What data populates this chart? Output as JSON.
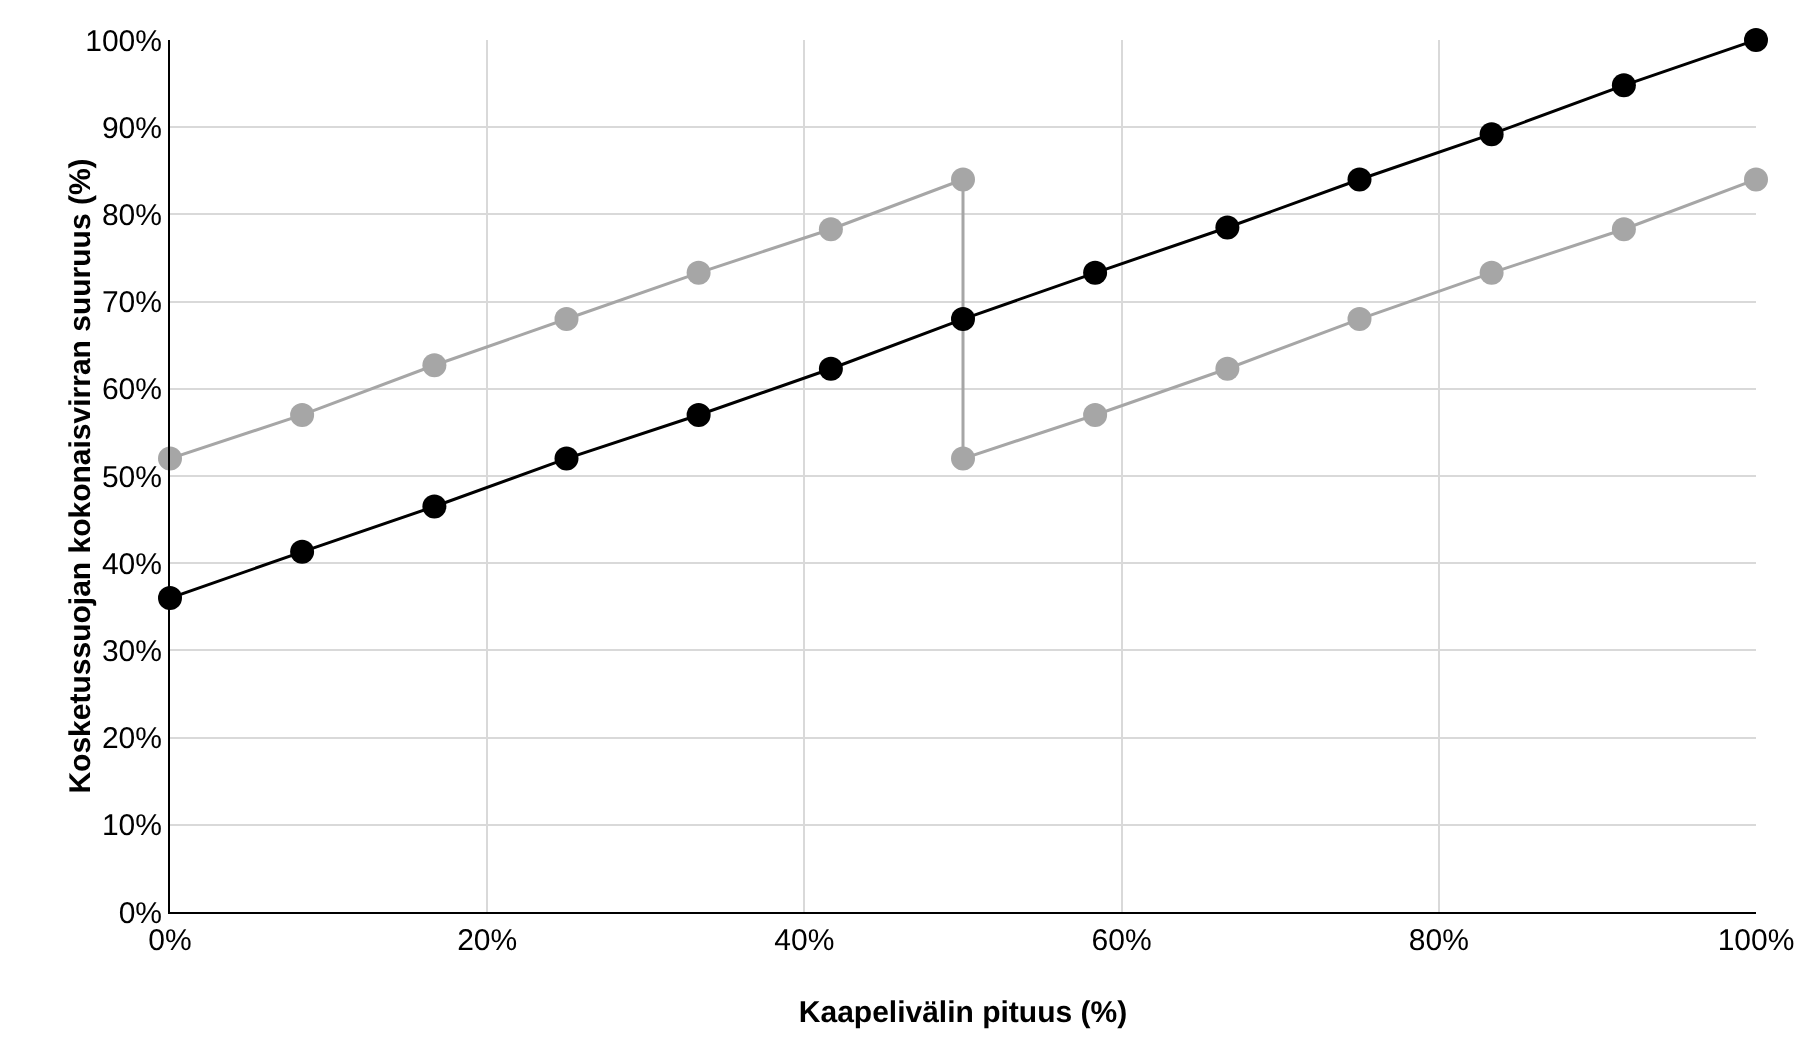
{
  "chart_data": {
    "type": "line",
    "xlabel": "Kaapelivälin pituus (%)",
    "ylabel": "Kosketussuojan kokonaisvirran suuruus (%)",
    "series": [
      {
        "color": "#a6a6a6",
        "x": [
          0,
          8.33,
          16.67,
          25,
          33.33,
          41.67,
          50,
          50,
          58.33,
          66.67,
          75,
          83.33,
          91.67,
          100
        ],
        "values": [
          52,
          57,
          62.7,
          68,
          73.3,
          78.3,
          84,
          52,
          57,
          62.3,
          68,
          73.3,
          78.3,
          84
        ]
      },
      {
        "color": "#000000",
        "x": [
          0,
          8.33,
          16.67,
          25,
          33.33,
          41.67,
          50,
          58.33,
          66.67,
          75,
          83.33,
          91.67,
          100
        ],
        "values": [
          36,
          41.3,
          46.5,
          52,
          57,
          62.3,
          68,
          73.3,
          78.5,
          84,
          89.2,
          94.8,
          100
        ]
      }
    ],
    "xlim": [
      0,
      100
    ],
    "ylim": [
      0,
      100
    ],
    "xticks": [
      {
        "value": 0,
        "label": "0%"
      },
      {
        "value": 20,
        "label": "20%"
      },
      {
        "value": 40,
        "label": "40%"
      },
      {
        "value": 60,
        "label": "60%"
      },
      {
        "value": 80,
        "label": "80%"
      },
      {
        "value": 100,
        "label": "100%"
      }
    ],
    "yticks": [
      {
        "value": 0,
        "label": "0%"
      },
      {
        "value": 10,
        "label": "10%"
      },
      {
        "value": 20,
        "label": "20%"
      },
      {
        "value": 30,
        "label": "30%"
      },
      {
        "value": 40,
        "label": "40%"
      },
      {
        "value": 50,
        "label": "50%"
      },
      {
        "value": 60,
        "label": "60%"
      },
      {
        "value": 70,
        "label": "70%"
      },
      {
        "value": 80,
        "label": "80%"
      },
      {
        "value": 90,
        "label": "90%"
      },
      {
        "value": 100,
        "label": "100%"
      }
    ],
    "grid": true,
    "legend": false,
    "marker": "circle",
    "line_style": "solid"
  }
}
